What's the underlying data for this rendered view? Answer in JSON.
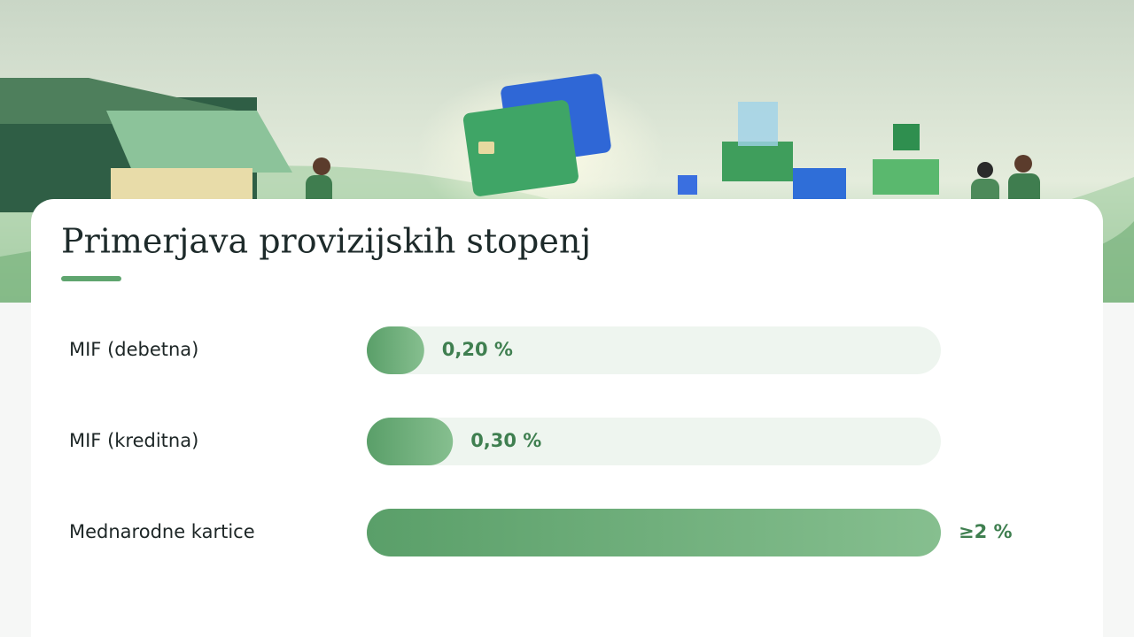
{
  "chart_data": {
    "type": "bar",
    "orientation": "horizontal",
    "title": "Primerjava provizijskih stopenj",
    "categories": [
      "MIF (debetna)",
      "MIF (kreditna)",
      "Mednarodne kartice"
    ],
    "values": [
      0.2,
      0.3,
      2
    ],
    "value_labels": [
      "0,20 %",
      "0,30 %",
      "≥2 %"
    ],
    "color": "#5fa56f"
  }
}
